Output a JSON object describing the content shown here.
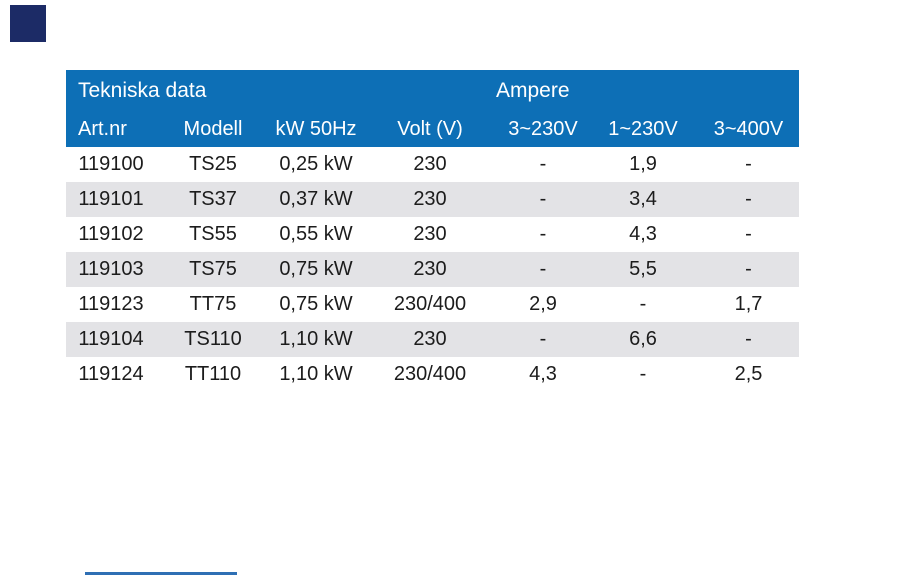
{
  "colors": {
    "page_bg": "#ffffff",
    "header_bg": "#0d6fb6",
    "header_text": "#ffffff",
    "row_alt_bg": "#e3e3e6",
    "body_text": "#1c1c1c",
    "corner_square": "#1c2b66",
    "footer_line": "#2e6fb4"
  },
  "table": {
    "title": "Tekniska data",
    "group_header": "Ampere",
    "columns": [
      "Art.nr",
      "Modell",
      "kW 50Hz",
      "Volt (V)",
      "3~230V",
      "1~230V",
      "3~400V"
    ],
    "rows": [
      [
        "119100",
        "TS25",
        "0,25 kW",
        "230",
        "-",
        "1,9",
        "-"
      ],
      [
        "119101",
        "TS37",
        "0,37 kW",
        "230",
        "-",
        "3,4",
        "-"
      ],
      [
        "119102",
        "TS55",
        "0,55 kW",
        "230",
        "-",
        "4,3",
        "-"
      ],
      [
        "119103",
        "TS75",
        "0,75 kW",
        "230",
        "-",
        "5,5",
        "-"
      ],
      [
        "119123",
        "TT75",
        "0,75 kW",
        "230/400",
        "2,9",
        "-",
        "1,7"
      ],
      [
        "119104",
        "TS110",
        "1,10 kW",
        "230",
        "-",
        "6,6",
        "-"
      ],
      [
        "119124",
        "TT110",
        "1,10 kW",
        "230/400",
        "4,3",
        "-",
        "2,5"
      ]
    ]
  }
}
